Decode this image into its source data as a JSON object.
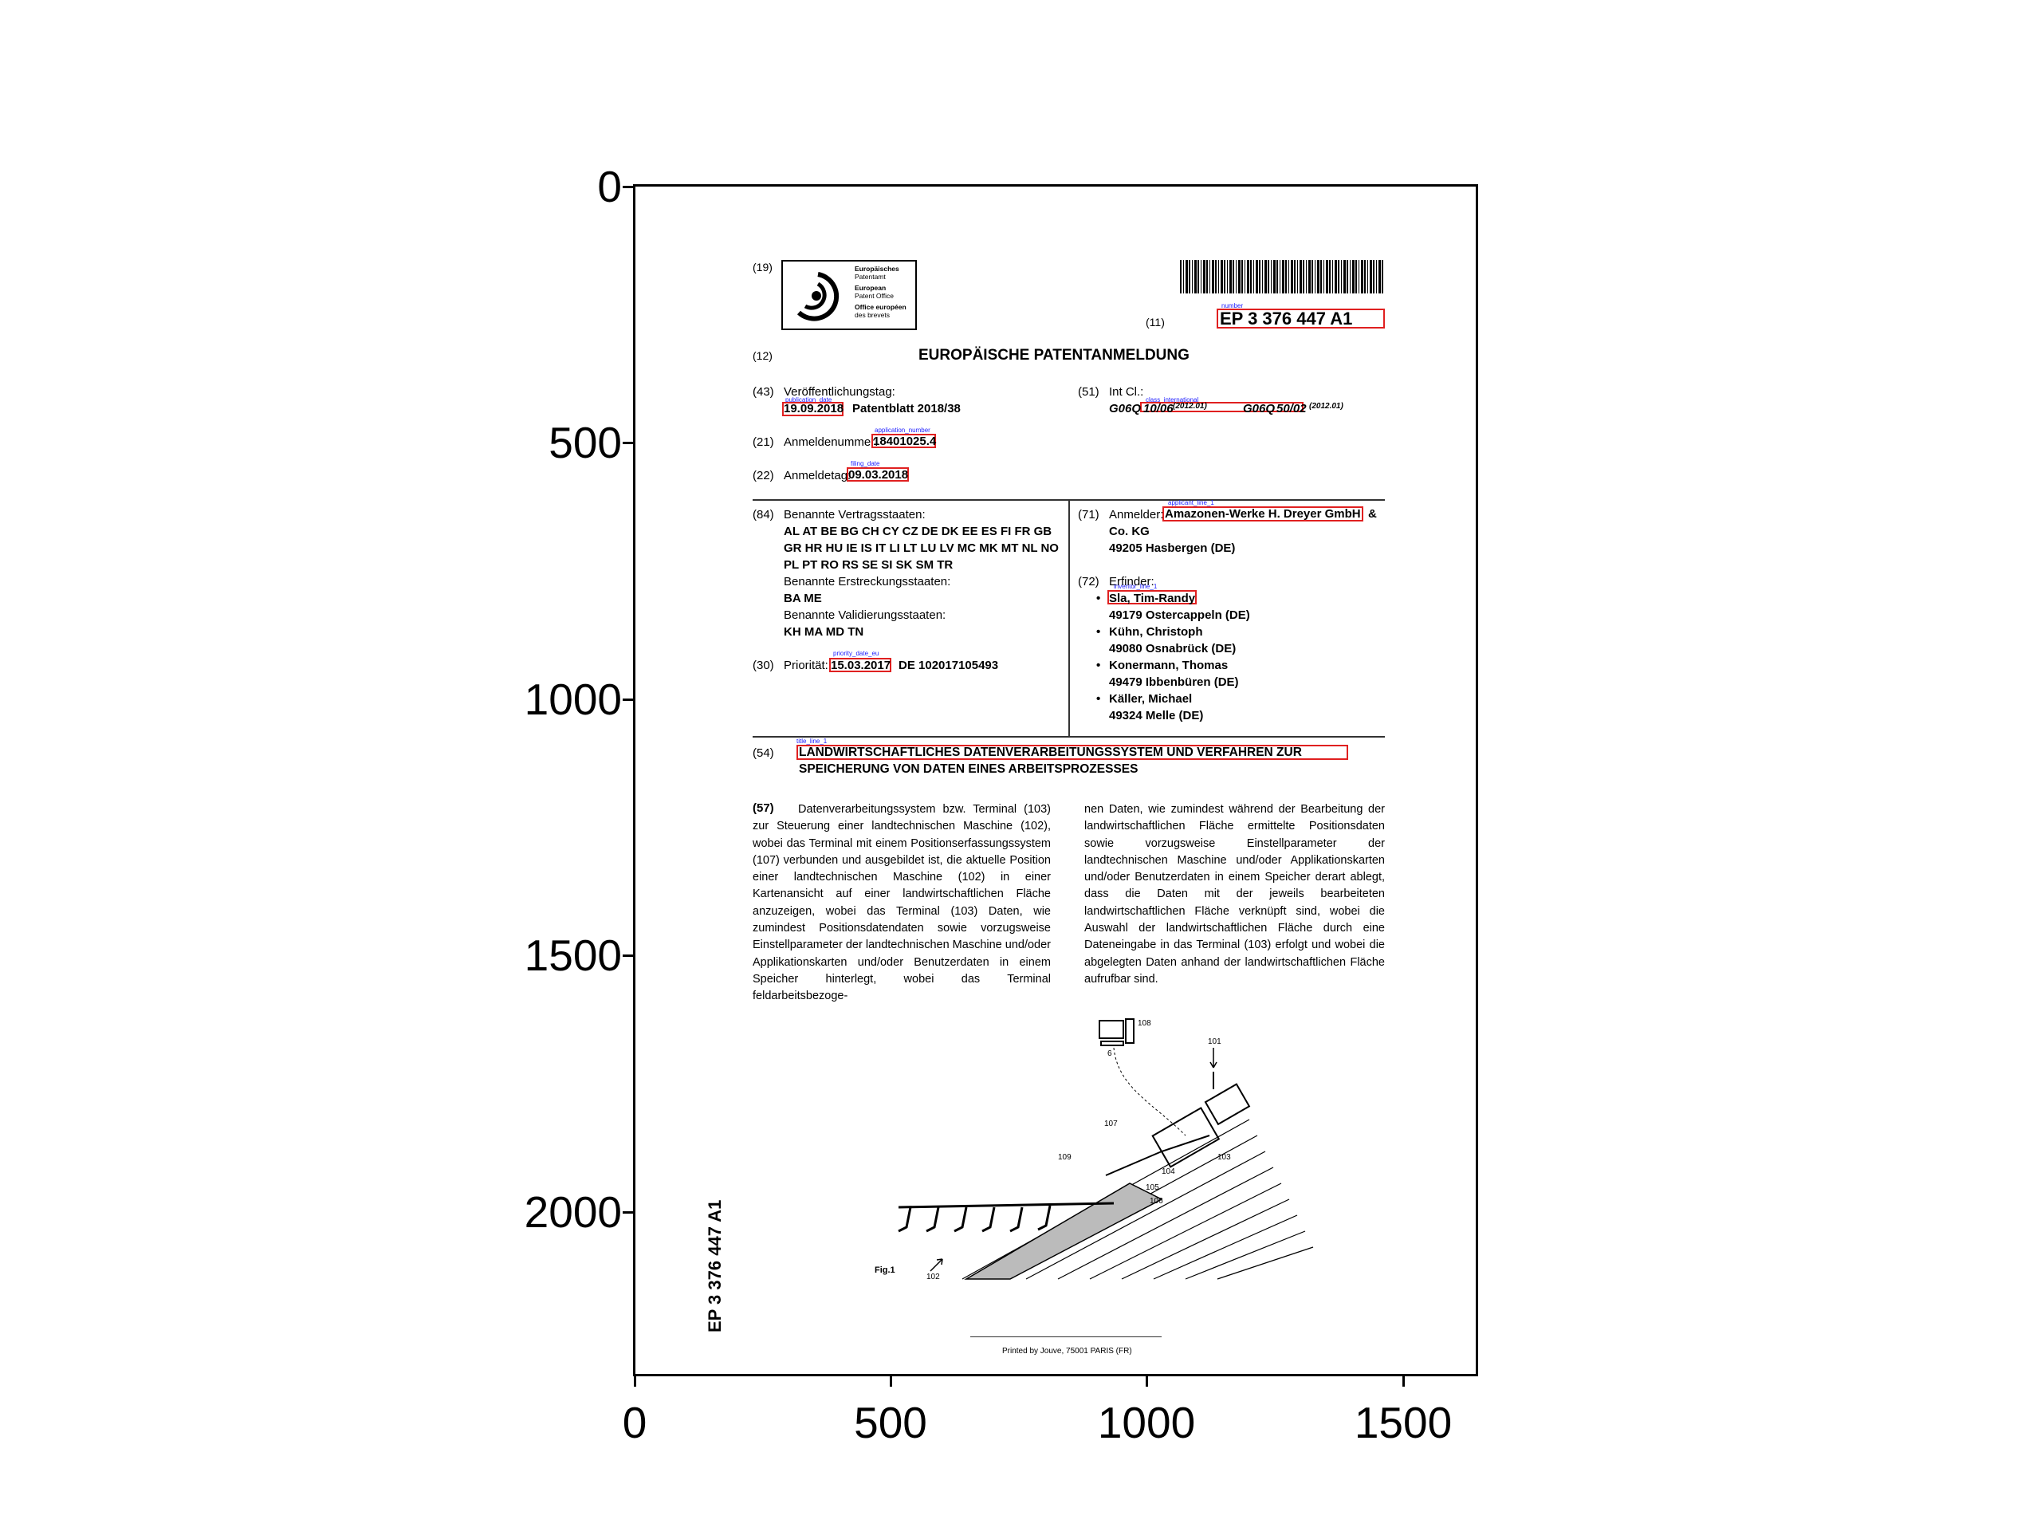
{
  "axes": {
    "y_ticks": [
      "0",
      "500",
      "1000",
      "1500",
      "2000"
    ],
    "x_ticks": [
      "0",
      "500",
      "1000",
      "1500"
    ]
  },
  "header": {
    "code19": "(19)",
    "office_lines": [
      "Europäisches",
      "Patentamt",
      "European",
      "Patent Office",
      "Office européen",
      "des brevets"
    ],
    "code11": "(11)",
    "number_tag": "number",
    "publication_number": "EP 3 376 447 A1",
    "code12": "(12)",
    "doc_type": "EUROPÄISCHE PATENTANMELDUNG"
  },
  "bibliographic": {
    "code43": "(43)",
    "pub_label": "Veröffentlichungstag:",
    "pub_date_tag": "publication_date",
    "pub_date": "19.09.2018",
    "patentblatt": "Patentblatt 2018/38",
    "code21": "(21)",
    "app_num_label": "Anmeldenummer:",
    "app_num_tag": "application_number",
    "app_num": "18401025.4",
    "code22": "(22)",
    "filing_label": "Anmeldetag:",
    "filing_tag": "filing_date",
    "filing_date": "09.03.2018",
    "code51": "(51)",
    "intcl_label": "Int Cl.:",
    "class_tag": "class_international",
    "class1_a": "G06Q",
    "class1_b": "10/06",
    "class1_year": "(2012.01)",
    "class2_a": "G06Q",
    "class2_b": "50/02",
    "class2_year": "(2012.01)"
  },
  "states": {
    "code84": "(84)",
    "label": "Benannte Vertragsstaaten:",
    "line1": "AL AT BE BG CH CY CZ DE DK EE ES FI FR GB",
    "line2": "GR HR HU IE IS IT LI LT LU LV MC MK MT NL NO",
    "line3": "PL PT RO RS SE SI SK SM TR",
    "ext_label": "Benannte Erstreckungsstaaten:",
    "ext": "BA ME",
    "val_label": "Benannte Validierungsstaaten:",
    "val": "KH MA MD TN",
    "code30": "(30)",
    "prio_label": "Priorität:",
    "prio_tag": "priority_date_eu",
    "prio_date": "15.03.2017",
    "prio_ref": "DE 102017105493"
  },
  "applicant": {
    "code71": "(71)",
    "label": "Anmelder:",
    "tag": "applicant_line_1",
    "line1": "Amazonen-Werke H. Dreyer GmbH",
    "amp": "&",
    "line2": "Co. KG",
    "line3": "49205 Hasbergen (DE)"
  },
  "inventors": {
    "code72": "(72)",
    "label": "Erfinder:",
    "tag": "inventor_line_1",
    "list": [
      {
        "name": "Sla, Tim-Randy",
        "addr": "49179 Ostercappeln (DE)"
      },
      {
        "name": "Kühn, Christoph",
        "addr": "49080 Osnabrück (DE)"
      },
      {
        "name": "Konermann, Thomas",
        "addr": "49479 Ibbenbüren (DE)"
      },
      {
        "name": "Käller, Michael",
        "addr": "49324 Melle (DE)"
      }
    ]
  },
  "title": {
    "code54": "(54)",
    "tag": "title_line_1",
    "line1": "LANDWIRTSCHAFTLICHES DATENVERARBEITUNGSSYSTEM UND VERFAHREN ZUR",
    "line2": "SPEICHERUNG VON DATEN EINES ARBEITSPROZESSES"
  },
  "abstract": {
    "code57": "(57)",
    "col1": "Datenverarbeitungssystem bzw. Terminal (103) zur Steuerung einer landtechnischen Maschine (102), wobei das Terminal mit einem Positionserfassungssystem (107) verbunden und ausgebildet ist, die aktuelle Position einer landtechnischen Maschine (102) in einer Kartenansicht auf einer landwirtschaftlichen Fläche anzuzeigen, wobei das Terminal (103) Daten, wie zumindest Positionsdatendaten sowie vorzugsweise Einstellparameter der landtechnischen Maschine und/oder Applikationskarten und/oder Benutzerdaten in einem Speicher hinterlegt, wobei das Terminal feldarbeitsbezoge-",
    "col2": "nen Daten, wie zumindest während der Bearbeitung der landwirtschaftlichen Fläche ermittelte Positionsdaten sowie vorzugsweise Einstellparameter der landtechnischen Maschine und/oder Applikationskarten und/oder Benutzerdaten in einem Speicher derart ablegt, dass die Daten mit der jeweils bearbeiteten landwirtschaftlichen Fläche verknüpft sind, wobei die Auswahl der landwirtschaftlichen Fläche durch eine Dateneingabe in das Terminal (103) erfolgt und wobei die abgelegten Daten anhand der landwirtschaftlichen Fläche aufrufbar sind."
  },
  "figure": {
    "labels": [
      "108",
      "101",
      "107",
      "109",
      "103",
      "104",
      "105",
      "106",
      "102",
      "6"
    ],
    "caption": "Fig.1"
  },
  "footer": {
    "side_number": "EP 3 376 447 A1",
    "printed": "Printed by Jouve, 75001 PARIS (FR)"
  }
}
